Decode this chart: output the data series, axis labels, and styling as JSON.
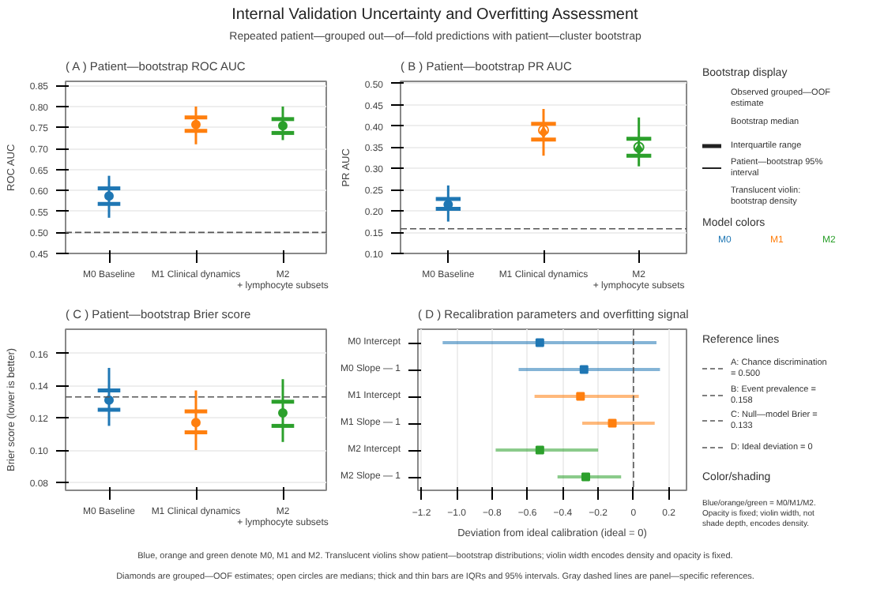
{
  "chart_data": [
    {
      "type": "box",
      "title": "( A ) Patient—bootstrap ROC AUC",
      "ylabel": "ROC AUC",
      "categories": [
        "M0 Baseline",
        "M1 Clinical dynamics",
        "M2\n+ lymphocyte subsets"
      ],
      "colors": [
        "#1f77b4",
        "#ff7f0e",
        "#2ca02c"
      ],
      "boxes": [
        {
          "low": 0.535,
          "q1": 0.568,
          "median": 0.587,
          "q3": 0.605,
          "high": 0.635
        },
        {
          "low": 0.71,
          "q1": 0.742,
          "median": 0.757,
          "q3": 0.774,
          "high": 0.8
        },
        {
          "low": 0.72,
          "q1": 0.737,
          "median": 0.754,
          "q3": 0.77,
          "high": 0.8
        }
      ],
      "ylim": [
        0.45,
        0.86
      ],
      "yticks": [
        0.45,
        {
          "value": 0.5,
          "label": "0.50"
        },
        0.55,
        {
          "value": 0.6,
          "label": "0.60"
        },
        0.65,
        {
          "value": 0.7,
          "label": "0.70"
        },
        0.75,
        {
          "value": 0.8,
          "label": "0.80"
        },
        0.85
      ],
      "ref_lines": [
        {
          "axis": "y",
          "value": 0.5,
          "color": "#555555",
          "line_style": "dashed"
        }
      ],
      "grid": "y"
    },
    {
      "type": "box",
      "title": "( B ) Patient—bootstrap PR AUC",
      "ylabel": "PR AUC",
      "categories": [
        "M0 Baseline",
        "M1 Clinical dynamics",
        "M2\n+ lymphocyte subsets"
      ],
      "colors": [
        "#1f77b4",
        "#ff7f0e",
        "#2ca02c"
      ],
      "boxes": [
        {
          "low": 0.175,
          "q1": 0.205,
          "median": 0.215,
          "q3": 0.228,
          "high": 0.26
        },
        {
          "low": 0.33,
          "q1": 0.368,
          "median": 0.39,
          "q3": 0.405,
          "high": 0.44,
          "mean": 0.385
        },
        {
          "low": 0.305,
          "q1": 0.33,
          "median": 0.35,
          "q3": 0.37,
          "high": 0.42,
          "mean": 0.345
        }
      ],
      "ylim": [
        0.1,
        0.505
      ],
      "yticks": [
        {
          "value": 0.1,
          "label": "0.10"
        },
        0.15,
        {
          "value": 0.2,
          "label": "0.20"
        },
        0.25,
        {
          "value": 0.3,
          "label": "0.30"
        },
        0.35,
        {
          "value": 0.4,
          "label": "0.40"
        },
        0.45,
        {
          "value": 0.5,
          "label": "0.50"
        }
      ],
      "ref_lines": [
        {
          "axis": "y",
          "value": 0.158,
          "color": "#555555",
          "line_style": "dashed"
        }
      ],
      "grid": "y",
      "marker": "diamond"
    },
    {
      "type": "box",
      "title": "( C ) Patient—bootstrap Brier score",
      "ylabel": "Brier score (lower is better)",
      "categories": [
        "M0 Baseline",
        "M1 Clinical dynamics",
        "M2\n+ lymphocyte subsets"
      ],
      "colors": [
        "#1f77b4",
        "#ff7f0e",
        "#2ca02c"
      ],
      "boxes": [
        {
          "low": 0.115,
          "q1": 0.125,
          "median": 0.131,
          "q3": 0.137,
          "high": 0.151
        },
        {
          "low": 0.1,
          "q1": 0.111,
          "median": 0.117,
          "q3": 0.124,
          "high": 0.137
        },
        {
          "low": 0.105,
          "q1": 0.115,
          "median": 0.123,
          "q3": 0.13,
          "high": 0.144
        }
      ],
      "ylim": [
        0.075,
        0.175
      ],
      "yticks": [
        0.08,
        {
          "value": 0.1,
          "label": "0.10"
        },
        0.12,
        0.14,
        0.16
      ],
      "ref_lines": [
        {
          "axis": "y",
          "value": 0.133,
          "color": "#555555",
          "line_style": "dashed"
        }
      ],
      "grid": "y"
    },
    {
      "type": "scatter",
      "orientation": "horizontal",
      "title": "( D ) Recalibration parameters and overfitting signal",
      "xlabel": "Deviation from ideal calibration (ideal = 0)",
      "categories": [
        "M0 Intercept",
        "M0 Slope — 1",
        "M1 Intercept",
        "M1 Slope — 1",
        "M2 Intercept",
        "M2 Slope — 1"
      ],
      "values": [
        -0.53,
        -0.28,
        -0.3,
        -0.12,
        -0.53,
        -0.27
      ],
      "errors": [
        [
          -1.08,
          0.13
        ],
        [
          -0.65,
          0.15
        ],
        [
          -0.56,
          0.03
        ],
        [
          -0.29,
          0.12
        ],
        [
          -0.78,
          -0.2
        ],
        [
          -0.43,
          -0.07
        ]
      ],
      "colors": [
        "#1f77b4",
        "#1f77b4",
        "#ff7f0e",
        "#ff7f0e",
        "#2ca02c",
        "#2ca02c"
      ],
      "xlim": [
        -1.22,
        0.3
      ],
      "xticks": [
        {
          "value": -1.2,
          "label": "−1.2"
        },
        {
          "value": -1.0,
          "label": "−1.0"
        },
        {
          "value": -0.8,
          "label": "−0.8"
        },
        {
          "value": -0.6,
          "label": "−0.6"
        },
        {
          "value": -0.4,
          "label": "−0.4"
        },
        {
          "value": -0.2,
          "label": "−0.2"
        },
        0,
        0.2
      ],
      "ref_lines": [
        {
          "axis": "x",
          "value": 0,
          "color": "#555555",
          "line_style": "dashed"
        }
      ],
      "grid": "x",
      "marker": "square"
    },
    {
      "type": "other",
      "title": "Internal Validation Uncertainty and Overfitting Assessment",
      "subtitle": "Repeated patient—grouped out—of—fold predictions with patient—cluster bootstrap",
      "annotations": [
        "Bootstrap display",
        "Observed grouped—OOF estimate",
        "Bootstrap median",
        "Interquartile range",
        "Patient—bootstrap 95% interval",
        "Translucent violin: bootstrap density",
        "Model colors",
        "M0",
        "M1",
        "M2",
        "Reference lines",
        "A: Chance discrimination = 0.500",
        "B: Event prevalence = 0.158",
        "C: Null—model Brier = 0.133",
        "D: Ideal deviation = 0",
        "Color/shading",
        "Blue/orange/green = M0/M1/M2. Opacity is fixed; violin width, not shade depth, encodes density.",
        "Blue, orange and green denote M0, M1 and M2. Translucent violins show patient—bootstrap distributions; violin width encodes density and opacity is fixed.",
        "Diamonds are grouped—OOF estimates; open circles are medians; thick and thin bars are IQRs and 95% intervals. Gray dashed lines are panel—specific references."
      ]
    }
  ]
}
